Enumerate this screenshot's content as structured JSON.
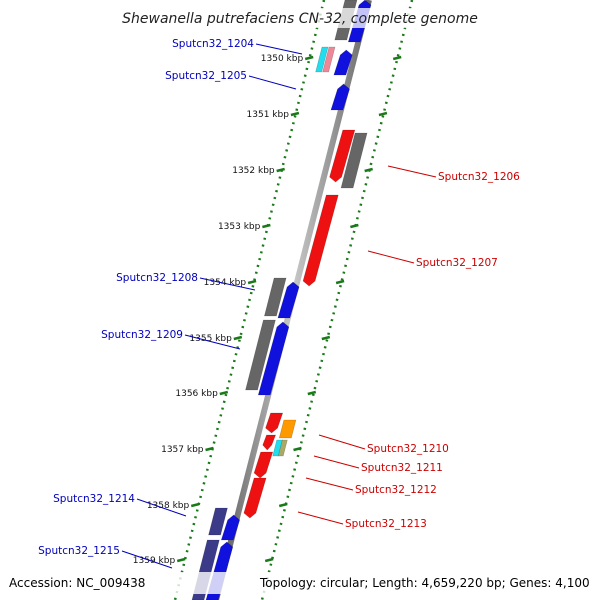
{
  "title": "Shewanella putrefaciens CN-32, complete genome",
  "accession": "Accession: NC_009438",
  "summary": "Topology: circular; Length: 4,659,220 bp; Genes: 4,100",
  "colors": {
    "forward_label": "#0000bb",
    "reverse_label": "#cc0000",
    "backbone": "#888888",
    "dots": "#1a7a1a",
    "gene_blue": "#1111dd",
    "gene_red": "#ee1111",
    "gene_gray": "#666666",
    "gene_navy": "#3b3b8a",
    "gene_orange": "#ff9900",
    "gene_cyan": "#22ddee",
    "gene_pink": "#ee8899"
  },
  "ticks": [
    "1350 kbp",
    "1351 kbp",
    "1352 kbp",
    "1353 kbp",
    "1354 kbp",
    "1355 kbp",
    "1356 kbp",
    "1357 kbp",
    "1358 kbp",
    "1359 kbp"
  ],
  "forward_labels": [
    "Sputcn32_1204",
    "Sputcn32_1205",
    "Sputcn32_1208",
    "Sputcn32_1209",
    "Sputcn32_1214",
    "Sputcn32_1215"
  ],
  "reverse_labels": [
    "Sputcn32_1206",
    "Sputcn32_1207",
    "Sputcn32_1210",
    "Sputcn32_1211",
    "Sputcn32_1212",
    "Sputcn32_1213"
  ]
}
